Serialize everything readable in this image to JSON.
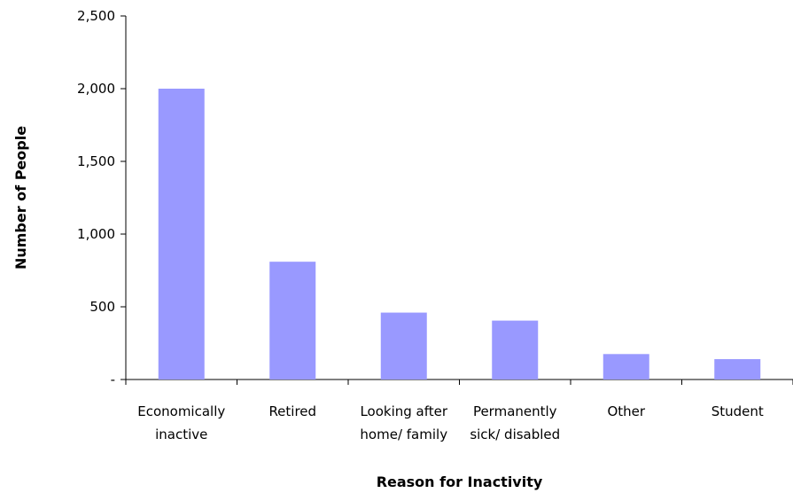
{
  "chart_data": {
    "type": "bar",
    "title": "",
    "xlabel": "Reason for Inactivity",
    "ylabel": "Number of People",
    "categories": [
      [
        "Economically",
        "inactive"
      ],
      [
        "Retired"
      ],
      [
        "Looking after",
        "home/ family"
      ],
      [
        "Permanently",
        "sick/ disabled"
      ],
      [
        "Other"
      ],
      [
        "Student"
      ]
    ],
    "values": [
      2000,
      810,
      460,
      405,
      175,
      140
    ],
    "ylim": [
      0,
      2500
    ],
    "yticks": [
      0,
      500,
      1000,
      1500,
      2000,
      2500
    ],
    "ytick_labels": [
      "-",
      "500",
      "1,000",
      "1,500",
      "2,000",
      "2,500"
    ],
    "bar_color": "#9999ff",
    "grid": false,
    "legend": "none"
  }
}
